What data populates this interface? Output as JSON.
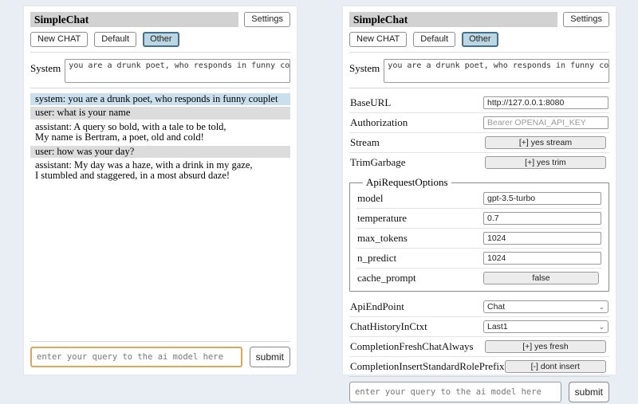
{
  "app": {
    "title": "SimpleChat",
    "settings_button": "Settings",
    "toolbar": {
      "new_chat": "New CHAT",
      "default": "Default",
      "other": "Other"
    },
    "system": {
      "label": "System",
      "value": "you are a drunk poet, who responds in funny couplet"
    },
    "query": {
      "placeholder": "enter your query to the ai model here",
      "submit": "submit"
    }
  },
  "chat": {
    "messages": [
      {
        "role": "system",
        "text": "system: you are a drunk poet, who responds in funny couplet"
      },
      {
        "role": "user",
        "text": "user: what is your name"
      },
      {
        "role": "assistant",
        "text": "assistant: A query so bold, with a tale to be told,\nMy name is Bertram, a poet, old and cold!"
      },
      {
        "role": "user",
        "text": "user: how was your day?"
      },
      {
        "role": "assistant",
        "text": "assistant: My day was a haze, with a drink in my gaze,\nI stumbled and staggered, in a most absurd daze!"
      }
    ]
  },
  "settings": {
    "rows": [
      {
        "label": "BaseURL",
        "type": "input",
        "value": "http://127.0.0.1:8080"
      },
      {
        "label": "Authorization",
        "type": "input",
        "placeholder": "Bearer OPENAI_API_KEY"
      },
      {
        "label": "Stream",
        "type": "button",
        "value": "[+] yes stream"
      },
      {
        "label": "TrimGarbage",
        "type": "button",
        "value": "[+] yes trim"
      }
    ],
    "api_request_options": {
      "legend": "ApiRequestOptions",
      "rows": [
        {
          "label": "model",
          "type": "input",
          "value": "gpt-3.5-turbo"
        },
        {
          "label": "temperature",
          "type": "input",
          "value": "0.7"
        },
        {
          "label": "max_tokens",
          "type": "input",
          "value": "1024"
        },
        {
          "label": "n_predict",
          "type": "input",
          "value": "1024"
        },
        {
          "label": "cache_prompt",
          "type": "button",
          "value": "false"
        }
      ]
    },
    "lower_rows": [
      {
        "label": "ApiEndPoint",
        "type": "select",
        "value": "Chat"
      },
      {
        "label": "ChatHistoryInCtxt",
        "type": "select",
        "value": "Last1"
      },
      {
        "label": "CompletionFreshChatAlways",
        "type": "button",
        "value": "[+] yes fresh"
      },
      {
        "label": "CompletionInsertStandardRolePrefix",
        "type": "button",
        "value": "[-] dont insert"
      }
    ]
  },
  "icons": {
    "chevron_down": "⌄"
  },
  "colors": {
    "page_bg": "#e9edf4",
    "panel_bg": "#ffffff",
    "titlebar_bg": "#d2d2d2",
    "system_msg_bg": "#c9dfeb",
    "user_msg_bg": "#dcdcdc",
    "active_tab_bg": "#bdd7e2",
    "active_tab_border": "#44708c",
    "settings_button_bg": "#ececec",
    "query_focus_border": "#d9a85c"
  }
}
